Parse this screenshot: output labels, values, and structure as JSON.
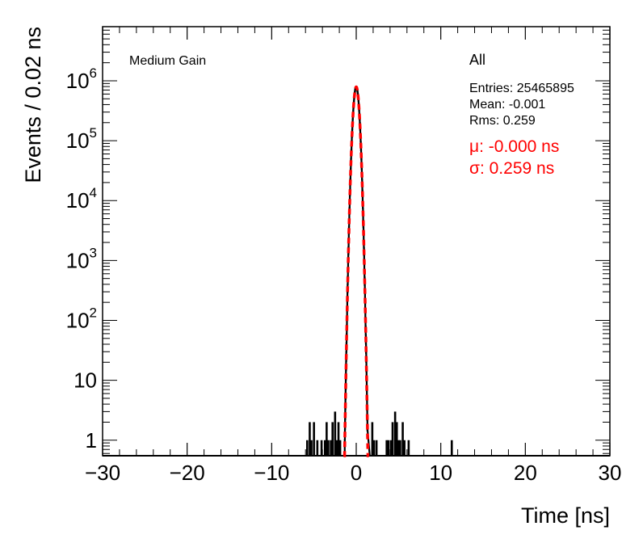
{
  "chart_data": {
    "type": "histogram",
    "xlabel": "Time [ns]",
    "ylabel": "Events / 0.02 ns",
    "xlim": [
      -30,
      30
    ],
    "ylim": [
      0.55,
      8000000
    ],
    "yscale": "log",
    "grid": false,
    "x_ticks": [
      -30,
      -20,
      -10,
      0,
      10,
      20,
      30
    ],
    "x_tick_labels": [
      "−30",
      "−20",
      "−10",
      "0",
      "10",
      "20",
      "30"
    ],
    "y_ticks": [
      {
        "value": 1,
        "base": "1",
        "exp": ""
      },
      {
        "value": 10,
        "base": "10",
        "exp": ""
      },
      {
        "value": 100,
        "base": "10",
        "exp": "2"
      },
      {
        "value": 1000,
        "base": "10",
        "exp": "3"
      },
      {
        "value": 10000,
        "base": "10",
        "exp": "4"
      },
      {
        "value": 100000,
        "base": "10",
        "exp": "5"
      },
      {
        "value": 1000000,
        "base": "10",
        "exp": "6"
      }
    ],
    "annotations": {
      "gain_label": "Medium Gain",
      "stats_title": "All",
      "entries": "Entries: 25465895",
      "mean": "Mean: -0.001",
      "rms": "Rms: 0.259",
      "fit_mu": "μ: -0.000 ns",
      "fit_sigma": "σ: 0.259 ns"
    },
    "histogram": {
      "color": "#000000",
      "mean": -0.001,
      "rms": 0.259,
      "peak": 790000,
      "tails": [
        {
          "x": -5.8,
          "y": 1
        },
        {
          "x": -5.5,
          "y": 2
        },
        {
          "x": -5.3,
          "y": 1
        },
        {
          "x": -5.0,
          "y": 2
        },
        {
          "x": -4.6,
          "y": 1
        },
        {
          "x": -4.1,
          "y": 1
        },
        {
          "x": -3.7,
          "y": 1
        },
        {
          "x": -3.5,
          "y": 2
        },
        {
          "x": -3.3,
          "y": 1
        },
        {
          "x": -3.0,
          "y": 1
        },
        {
          "x": -2.8,
          "y": 2
        },
        {
          "x": -2.5,
          "y": 3
        },
        {
          "x": -2.3,
          "y": 1
        },
        {
          "x": -2.1,
          "y": 2
        },
        {
          "x": -1.9,
          "y": 1
        },
        {
          "x": 1.9,
          "y": 2
        },
        {
          "x": 2.1,
          "y": 1
        },
        {
          "x": 2.4,
          "y": 1
        },
        {
          "x": 3.6,
          "y": 1
        },
        {
          "x": 3.8,
          "y": 1
        },
        {
          "x": 4.1,
          "y": 1
        },
        {
          "x": 4.3,
          "y": 2
        },
        {
          "x": 4.6,
          "y": 3
        },
        {
          "x": 4.8,
          "y": 2
        },
        {
          "x": 5.0,
          "y": 1
        },
        {
          "x": 5.2,
          "y": 1
        },
        {
          "x": 5.5,
          "y": 2
        },
        {
          "x": 5.7,
          "y": 1
        },
        {
          "x": 6.2,
          "y": 1
        },
        {
          "x": 11.3,
          "y": 1
        }
      ]
    },
    "fit": {
      "type": "gaussian",
      "color": "#ff0000",
      "line_style": "dashed",
      "mu": 0.0,
      "sigma": 0.259,
      "amplitude": 790000
    }
  }
}
